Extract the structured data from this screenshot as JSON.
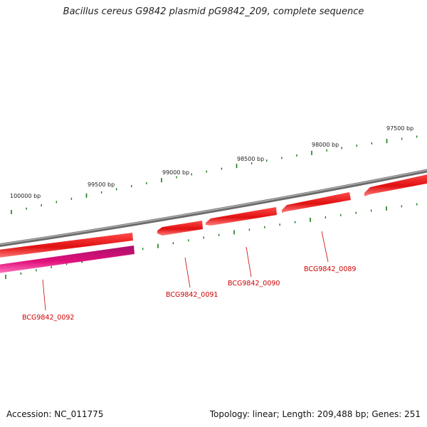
{
  "title": "Bacillus cereus G9842 plasmid pG9842_209, complete sequence",
  "footer": {
    "accession": "Accession: NC_011775",
    "summary": "Topology: linear; Length: 209,488 bp; Genes: 251"
  },
  "colors": {
    "backbone": "#8a8a8a",
    "gene_forward": "#e01010",
    "gene_reverse": "#e0107a",
    "gene_label": "#cc0000",
    "ticks": "#1a7a1a"
  },
  "ticks": {
    "labels": [
      "100000 bp",
      "99500 bp",
      "99000 bp",
      "98500 bp",
      "98000 bp",
      "97500 bp"
    ]
  },
  "genes": [
    {
      "id": "BCG9842_0089",
      "label": "BCG9842_0089"
    },
    {
      "id": "BCG9842_0090",
      "label": "BCG9842_0090"
    },
    {
      "id": "BCG9842_0091",
      "label": "BCG9842_0091"
    },
    {
      "id": "BCG9842_0092",
      "label": "BCG9842_0092"
    }
  ]
}
